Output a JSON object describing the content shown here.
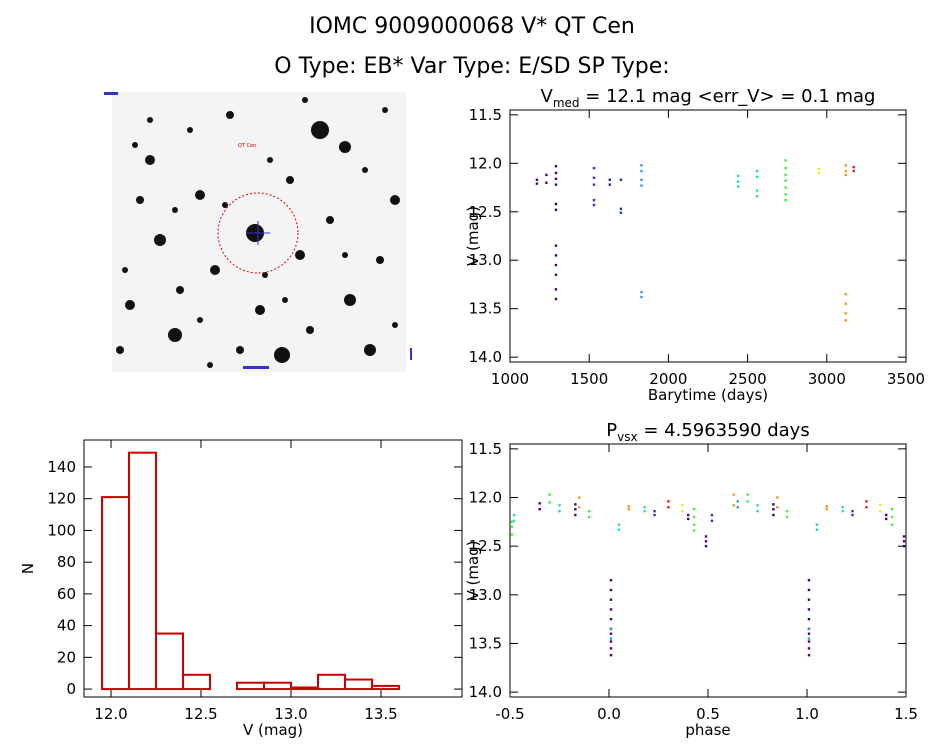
{
  "header": {
    "line1": "IOMC 9009000068    V* QT Cen",
    "line2": "O Type: EB*  Var Type: E/SD  SP Type:"
  },
  "image_panel": {
    "labels": [
      "QT Cen"
    ]
  },
  "chart_data": [
    {
      "id": "lightcurve",
      "type": "scatter",
      "title": "V_med = 12.1 mag <err_V> = 0.1 mag",
      "title_parts": {
        "v": "V",
        "sub": "med",
        "rest": " = 12.1 mag <err_V> = 0.1 mag"
      },
      "xlabel": "Barytime (days)",
      "ylabel": "V (mag)",
      "xlim": [
        1000,
        3500
      ],
      "ylim": [
        14.05,
        11.45
      ],
      "xticks": [
        "1000",
        "1500",
        "2000",
        "2500",
        "3000",
        "3500"
      ],
      "yticks": [
        "11.5",
        "12.0",
        "12.5",
        "13.0",
        "13.5",
        "14.0"
      ],
      "groups": [
        {
          "x": 1170,
          "y": [
            12.17,
            12.21
          ],
          "color": "#4b0082"
        },
        {
          "x": 1230,
          "y": [
            12.12,
            12.2
          ],
          "color": "#4b0082"
        },
        {
          "x": 1290,
          "y": [
            12.03,
            12.1,
            12.16,
            12.22,
            12.42,
            12.48,
            12.85,
            12.95,
            13.05,
            13.15,
            13.3,
            13.4
          ],
          "color": "#4b0082"
        },
        {
          "x": 1530,
          "y": [
            12.05,
            12.15,
            12.22,
            12.38,
            12.43
          ],
          "color": "#3333cc"
        },
        {
          "x": 1630,
          "y": [
            12.17,
            12.22
          ],
          "color": "#1e2b8a"
        },
        {
          "x": 1700,
          "y": [
            12.17,
            12.47,
            12.51
          ],
          "color": "#1e3c9e"
        },
        {
          "x": 1830,
          "y": [
            12.02,
            12.08,
            12.17,
            12.23,
            13.33,
            13.38
          ],
          "color": "#2f9fd8"
        },
        {
          "x": 2440,
          "y": [
            12.13,
            12.19,
            12.24
          ],
          "color": "#30d0d0"
        },
        {
          "x": 2560,
          "y": [
            12.08,
            12.14,
            12.28,
            12.34
          ],
          "color": "#2fd8b0"
        },
        {
          "x": 2740,
          "y": [
            11.97,
            12.05,
            12.12,
            12.18,
            12.25,
            12.32,
            12.38
          ],
          "color": "#44ee44"
        },
        {
          "x": 2950,
          "y": [
            12.06,
            12.1
          ],
          "color": "#ddee33"
        },
        {
          "x": 3120,
          "y": [
            12.02,
            12.08,
            12.12,
            13.35,
            13.45,
            13.55,
            13.62
          ],
          "color": "#ee9922"
        },
        {
          "x": 3170,
          "y": [
            12.04,
            12.08
          ],
          "color": "#e02020"
        }
      ]
    },
    {
      "id": "histogram",
      "type": "bar",
      "title": "",
      "xlabel": "V (mag)",
      "ylabel": "N",
      "xlim": [
        11.85,
        13.95
      ],
      "ylim": [
        -5,
        157
      ],
      "xticks": [
        "12.0",
        "12.5",
        "13.0",
        "13.5"
      ],
      "yticks": [
        "0",
        "20",
        "40",
        "60",
        "80",
        "100",
        "120",
        "140"
      ],
      "bin_width": 0.15,
      "bins": [
        {
          "left": 11.95,
          "count": 121
        },
        {
          "left": 12.1,
          "count": 149
        },
        {
          "left": 12.25,
          "count": 35
        },
        {
          "left": 12.4,
          "count": 9
        },
        {
          "left": 12.55,
          "count": 0
        },
        {
          "left": 12.7,
          "count": 4
        },
        {
          "left": 12.85,
          "count": 4
        },
        {
          "left": 13.0,
          "count": 1
        },
        {
          "left": 13.15,
          "count": 9
        },
        {
          "left": 13.3,
          "count": 6
        },
        {
          "left": 13.45,
          "count": 2
        },
        {
          "left": 13.6,
          "count": 0
        }
      ],
      "color": "#cc0000"
    },
    {
      "id": "phased",
      "type": "scatter",
      "title": "P_vsx = 4.5963590 days",
      "title_parts": {
        "v": "P",
        "sub": "vsx",
        "rest": " = 4.5963590 days"
      },
      "xlabel": "phase",
      "ylabel": "V (mag)",
      "xlim": [
        -0.5,
        1.5
      ],
      "ylim": [
        14.05,
        11.45
      ],
      "xticks": [
        "-0.5",
        "0.0",
        "0.5",
        "1.0",
        "1.5"
      ],
      "yticks": [
        "11.5",
        "12.0",
        "12.5",
        "13.0",
        "13.5",
        "14.0"
      ],
      "groups": [
        {
          "x": -0.49,
          "y": [
            12.25,
            12.3,
            12.38
          ],
          "color": "#44ee44"
        },
        {
          "x": -0.48,
          "y": [
            12.18,
            12.24
          ],
          "color": "#2fd8b0"
        },
        {
          "x": -0.35,
          "y": [
            12.06,
            12.12
          ],
          "color": "#4b0082"
        },
        {
          "x": -0.3,
          "y": [
            11.97,
            12.05
          ],
          "color": "#44ee44"
        },
        {
          "x": -0.25,
          "y": [
            12.08,
            12.14
          ],
          "color": "#2fd8b0"
        },
        {
          "x": -0.17,
          "y": [
            12.07,
            12.12,
            12.18
          ],
          "color": "#4b0082"
        },
        {
          "x": -0.15,
          "y": [
            12.0,
            12.1
          ],
          "color": "#ee9922"
        },
        {
          "x": -0.1,
          "y": [
            12.14,
            12.2
          ],
          "color": "#44ee44"
        },
        {
          "x": 0.01,
          "y": [
            12.85,
            12.95,
            13.05,
            13.15,
            13.25,
            13.35,
            13.4,
            13.48,
            13.55,
            13.62
          ],
          "color": "#4b0082"
        },
        {
          "x": 0.01,
          "y": [
            13.35,
            13.45
          ],
          "color": "#2f9fd8"
        },
        {
          "x": 0.05,
          "y": [
            12.28,
            12.33
          ],
          "color": "#30d0d0"
        },
        {
          "x": 0.1,
          "y": [
            12.09,
            12.12
          ],
          "color": "#ee9922"
        },
        {
          "x": 0.18,
          "y": [
            12.1,
            12.14
          ],
          "color": "#2fd8b0"
        },
        {
          "x": 0.23,
          "y": [
            12.14,
            12.18
          ],
          "color": "#3333cc"
        },
        {
          "x": 0.3,
          "y": [
            12.04,
            12.1
          ],
          "color": "#e02020"
        },
        {
          "x": 0.37,
          "y": [
            12.08,
            12.14
          ],
          "color": "#ddee33"
        },
        {
          "x": 0.4,
          "y": [
            12.18,
            12.22
          ],
          "color": "#4b0082"
        },
        {
          "x": 0.43,
          "y": [
            12.12,
            12.2,
            12.28,
            12.34
          ],
          "color": "#44ee44"
        },
        {
          "x": 0.49,
          "y": [
            12.4,
            12.45,
            12.5
          ],
          "color": "#4b0082"
        },
        {
          "x": 0.52,
          "y": [
            12.18,
            12.24
          ],
          "color": "#3333cc"
        },
        {
          "x": 0.63,
          "y": [
            11.97,
            12.08
          ],
          "color": "#ee9922"
        },
        {
          "x": 0.65,
          "y": [
            12.04,
            12.1
          ],
          "color": "#2f9fd8"
        },
        {
          "x": 0.7,
          "y": [
            11.97,
            12.04
          ],
          "color": "#44ee44"
        },
        {
          "x": 0.75,
          "y": [
            12.08,
            12.14
          ],
          "color": "#2fd8b0"
        },
        {
          "x": 0.83,
          "y": [
            12.07,
            12.12,
            12.18
          ],
          "color": "#4b0082"
        },
        {
          "x": 0.85,
          "y": [
            12.0,
            12.1
          ],
          "color": "#ee9922"
        },
        {
          "x": 0.9,
          "y": [
            12.14,
            12.2
          ],
          "color": "#44ee44"
        },
        {
          "x": 1.01,
          "y": [
            12.85,
            12.95,
            13.05,
            13.15,
            13.25,
            13.35,
            13.4,
            13.48,
            13.55,
            13.62
          ],
          "color": "#4b0082"
        },
        {
          "x": 1.01,
          "y": [
            13.35,
            13.45
          ],
          "color": "#2f9fd8"
        },
        {
          "x": 1.05,
          "y": [
            12.28,
            12.33
          ],
          "color": "#30d0d0"
        },
        {
          "x": 1.1,
          "y": [
            12.09,
            12.12
          ],
          "color": "#ee9922"
        },
        {
          "x": 1.18,
          "y": [
            12.1,
            12.14
          ],
          "color": "#2fd8b0"
        },
        {
          "x": 1.23,
          "y": [
            12.14,
            12.18
          ],
          "color": "#3333cc"
        },
        {
          "x": 1.3,
          "y": [
            12.04,
            12.1
          ],
          "color": "#e02020"
        },
        {
          "x": 1.37,
          "y": [
            12.08,
            12.14
          ],
          "color": "#ddee33"
        },
        {
          "x": 1.4,
          "y": [
            12.18,
            12.22
          ],
          "color": "#4b0082"
        },
        {
          "x": 1.43,
          "y": [
            12.12,
            12.2,
            12.28
          ],
          "color": "#44ee44"
        },
        {
          "x": 1.49,
          "y": [
            12.4,
            12.45,
            12.5
          ],
          "color": "#4b0082"
        }
      ]
    }
  ]
}
